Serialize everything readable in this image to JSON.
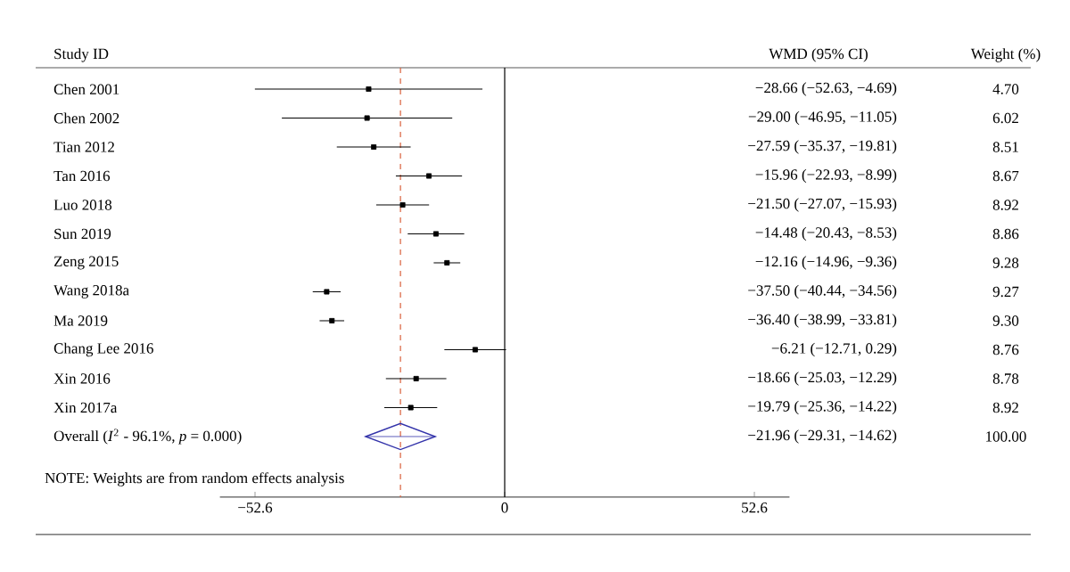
{
  "chart_data": {
    "type": "scatter",
    "orientation": "horizontal",
    "ylabel": "Study ID",
    "categories": [
      "Chen 2001",
      "Chen 2002",
      "Tian 2012",
      "Tan 2016",
      "Luo 2018",
      "Sun 2019",
      "Zeng 2015",
      "Wang 2018a",
      "Ma 2019",
      "Chang Lee 2016",
      "Xin 2016",
      "Xin 2017a",
      "Overall (*I*$^{2}$ - 96.1%, *p* = 0.000)"
    ],
    "series": [
      {
        "color": "#000000",
        "marker": "square",
        "values": [
          -28.66,
          -29.0,
          -27.59,
          -15.96,
          -21.5,
          -14.48,
          -12.16,
          -37.5,
          -36.4,
          -6.21,
          -18.66,
          -19.79,
          null
        ],
        "errors": [
          [
            -52.63,
            -4.69
          ],
          [
            -46.95,
            -11.05
          ],
          [
            -35.37,
            -19.81
          ],
          [
            -22.93,
            -8.99
          ],
          [
            -27.07,
            -15.93
          ],
          [
            -20.43,
            -8.53
          ],
          [
            -14.96,
            -9.36
          ],
          [
            -40.44,
            -34.56
          ],
          [
            -38.99,
            -33.81
          ],
          [
            -12.71,
            0.29
          ],
          [
            -25.03,
            -12.29
          ],
          [
            -25.36,
            -14.22
          ],
          null
        ]
      },
      {
        "color": "#3333aa",
        "marker": "diamond",
        "values": [
          null,
          null,
          null,
          null,
          null,
          null,
          null,
          null,
          null,
          null,
          null,
          null,
          -21.96
        ],
        "errors": [
          null,
          null,
          null,
          null,
          null,
          null,
          null,
          null,
          null,
          null,
          null,
          null,
          [
            -29.31,
            -14.62
          ]
        ]
      }
    ],
    "value_labels": [
      "−28.66 (−52.63, −4.69)",
      "−29.00 (−46.95, −11.05)",
      "−27.59 (−35.37, −19.81)",
      "−15.96 (−22.93, −8.99)",
      "−21.50 (−27.07, −15.93)",
      "−14.48 (−20.43, −8.53)",
      "−12.16 (−14.96, −9.36)",
      "−37.50 (−40.44, −34.56)",
      "−36.40 (−38.99, −33.81)",
      "−6.21 (−12.71, 0.29)",
      "−18.66 (−25.03, −12.29)",
      "−19.79 (−25.36, −14.22)",
      "−21.96 (−29.31, −14.62)"
    ],
    "annotations": [
      "WMD (95% CI)",
      "Weight (%)",
      "4.70",
      "6.02",
      "8.51",
      "8.67",
      "8.92",
      "8.86",
      "9.28",
      "9.27",
      "9.30",
      "8.76",
      "8.78",
      "8.92",
      "100.00",
      "NOTE: Weights are from random effects analysis"
    ],
    "xlim": [
      -60,
      60
    ],
    "xticks": [
      {
        "value": -52.6,
        "label": "−52.6"
      },
      0,
      52.6
    ],
    "ref_lines": [
      {
        "axis": "x",
        "value": 0,
        "color": "#000000",
        "line_style": "solid"
      },
      {
        "axis": "x",
        "value": -21.96,
        "color": "#d9603b",
        "line_style": "dashed"
      }
    ],
    "grid": false
  }
}
